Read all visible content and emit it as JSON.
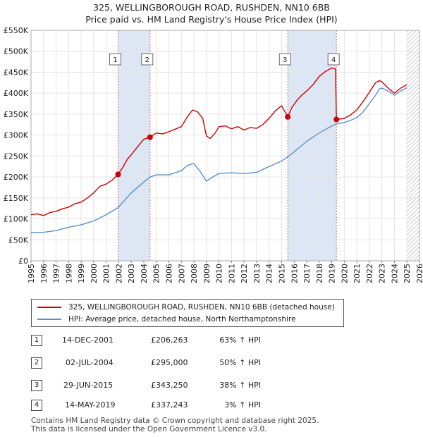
{
  "title": "325, WELLINGBOROUGH ROAD, RUSHDEN, NN10 6BB",
  "subtitle": "Price paid vs. HM Land Registry's House Price Index (HPI)",
  "colors": {
    "property": "#cc0000",
    "hpi": "#5b8fc9",
    "band": "#dce6f5",
    "hatch": "#aaaaaa"
  },
  "chart_data": {
    "type": "line",
    "x_range": [
      1995,
      2026
    ],
    "ylim": [
      0,
      550000
    ],
    "y_ticks": [
      0,
      50000,
      100000,
      150000,
      200000,
      250000,
      300000,
      350000,
      400000,
      450000,
      500000,
      550000
    ],
    "y_tick_labels": [
      "£0",
      "£50K",
      "£100K",
      "£150K",
      "£200K",
      "£250K",
      "£300K",
      "£350K",
      "£400K",
      "£450K",
      "£500K",
      "£550K"
    ],
    "x_ticks": [
      1995,
      1996,
      1997,
      1998,
      1999,
      2000,
      2001,
      2002,
      2003,
      2004,
      2005,
      2006,
      2007,
      2008,
      2009,
      2010,
      2011,
      2012,
      2013,
      2014,
      2015,
      2016,
      2017,
      2018,
      2019,
      2020,
      2021,
      2022,
      2023,
      2024,
      2025,
      2026
    ],
    "x_tick_labels": [
      "1995",
      "1996",
      "1997",
      "1998",
      "1999",
      "2000",
      "2001",
      "2002",
      "2003",
      "2004",
      "2005",
      "2006",
      "2007",
      "2008",
      "2009",
      "2010",
      "2011",
      "2012",
      "2013",
      "2014",
      "2015",
      "2016",
      "2017",
      "2018",
      "2019",
      "2020",
      "2021",
      "2022",
      "2023",
      "2024",
      "2025",
      "2026"
    ],
    "shaded_ranges": [
      [
        2001.95,
        2004.5
      ],
      [
        2015.49,
        2019.37
      ]
    ],
    "future_hatch_from": 2025.0,
    "series": [
      {
        "name": "325, WELLINGBOROUGH ROAD, RUSHDEN, NN10 6BB (detached house)",
        "x": [
          1995.0,
          1995.5,
          1996.0,
          1996.5,
          1997.0,
          1997.5,
          1998.0,
          1998.5,
          1999.0,
          1999.5,
          2000.0,
          2000.5,
          2001.0,
          2001.5,
          2001.95,
          2002.3,
          2002.7,
          2003.0,
          2003.5,
          2004.0,
          2004.5,
          2005.0,
          2005.5,
          2006.0,
          2006.5,
          2007.0,
          2007.5,
          2007.9,
          2008.3,
          2008.7,
          2009.0,
          2009.3,
          2009.7,
          2010.0,
          2010.5,
          2011.0,
          2011.5,
          2012.0,
          2012.5,
          2013.0,
          2013.5,
          2014.0,
          2014.5,
          2015.0,
          2015.49,
          2015.8,
          2016.2,
          2016.6,
          2017.0,
          2017.5,
          2018.0,
          2018.5,
          2019.0,
          2019.3,
          2019.37,
          2019.6,
          2020.0,
          2020.5,
          2021.0,
          2021.5,
          2022.0,
          2022.5,
          2022.8,
          2023.0,
          2023.5,
          2024.0,
          2024.5,
          2025.0
        ],
        "values": [
          110000,
          112000,
          108000,
          115000,
          118000,
          124000,
          128000,
          136000,
          140000,
          150000,
          162000,
          178000,
          183000,
          193000,
          206263,
          222000,
          243000,
          253000,
          272000,
          290000,
          295000,
          305000,
          303000,
          308000,
          314000,
          320000,
          345000,
          360000,
          355000,
          340000,
          298000,
          292000,
          305000,
          320000,
          322000,
          315000,
          320000,
          312000,
          318000,
          316000,
          325000,
          340000,
          358000,
          370000,
          343250,
          365000,
          382000,
          395000,
          405000,
          420000,
          440000,
          452000,
          460000,
          458000,
          337243,
          338000,
          340000,
          348000,
          360000,
          380000,
          402000,
          425000,
          430000,
          427000,
          412000,
          400000,
          412000,
          420000
        ]
      },
      {
        "name": "HPI: Average price, detached house, North Northamptonshire",
        "x": [
          1995.0,
          1996.0,
          1997.0,
          1998.0,
          1999.0,
          2000.0,
          2001.0,
          2001.95,
          2003.0,
          2004.0,
          2004.5,
          2005.0,
          2006.0,
          2007.0,
          2007.5,
          2008.0,
          2008.5,
          2009.0,
          2009.5,
          2010.0,
          2011.0,
          2012.0,
          2013.0,
          2014.0,
          2015.0,
          2015.49,
          2016.0,
          2017.0,
          2018.0,
          2019.0,
          2019.37,
          2020.0,
          2020.5,
          2021.0,
          2021.5,
          2022.0,
          2022.5,
          2022.8,
          2023.0,
          2023.5,
          2024.0,
          2024.5,
          2025.0
        ],
        "values": [
          67000,
          68000,
          72000,
          80000,
          86000,
          95000,
          110000,
          127000,
          162000,
          188000,
          200000,
          205000,
          205000,
          215000,
          228000,
          232000,
          213000,
          190000,
          200000,
          208000,
          210000,
          208000,
          211000,
          225000,
          238000,
          248000,
          260000,
          285000,
          305000,
          322000,
          327000,
          330000,
          335000,
          342000,
          355000,
          375000,
          395000,
          410000,
          412000,
          405000,
          395000,
          405000,
          413000
        ]
      }
    ],
    "sales": [
      {
        "n": "1",
        "x": 2001.95,
        "value": 206263
      },
      {
        "n": "2",
        "x": 2004.5,
        "value": 295000
      },
      {
        "n": "3",
        "x": 2015.49,
        "value": 343250
      },
      {
        "n": "4",
        "x": 2019.37,
        "value": 337243
      }
    ]
  },
  "legend": {
    "property": "325, WELLINGBOROUGH ROAD, RUSHDEN, NN10 6BB (detached house)",
    "hpi": "HPI: Average price, detached house, North Northamptonshire"
  },
  "table": [
    {
      "n": "1",
      "date": "14-DEC-2001",
      "price": "£206,263",
      "hpi": "63% ↑ HPI"
    },
    {
      "n": "2",
      "date": "02-JUL-2004",
      "price": "£295,000",
      "hpi": "50% ↑ HPI"
    },
    {
      "n": "3",
      "date": "29-JUN-2015",
      "price": "£343,250",
      "hpi": "38% ↑ HPI"
    },
    {
      "n": "4",
      "date": "14-MAY-2019",
      "price": "£337,243",
      "hpi": "3% ↑ HPI"
    }
  ],
  "footer": {
    "line1": "Contains HM Land Registry data © Crown copyright and database right 2025.",
    "line2": "This data is licensed under the Open Government Licence v3.0."
  }
}
